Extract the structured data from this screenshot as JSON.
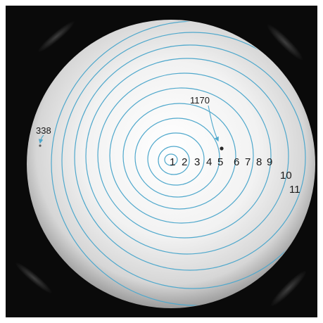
{
  "image": {
    "kind": "solar disk photograph with concentric distance rings",
    "background_color": "#0a0a0a",
    "disk_color_center": "#ffffff",
    "disk_color_edge": "#9c9c9c",
    "ring_color": "#4fa8cc"
  },
  "rings": {
    "labels": [
      "1",
      "2",
      "3",
      "4",
      "5",
      "6",
      "7",
      "8",
      "9",
      "10",
      "11"
    ]
  },
  "sunspots": [
    {
      "label": "1170"
    },
    {
      "label": "338"
    }
  ]
}
